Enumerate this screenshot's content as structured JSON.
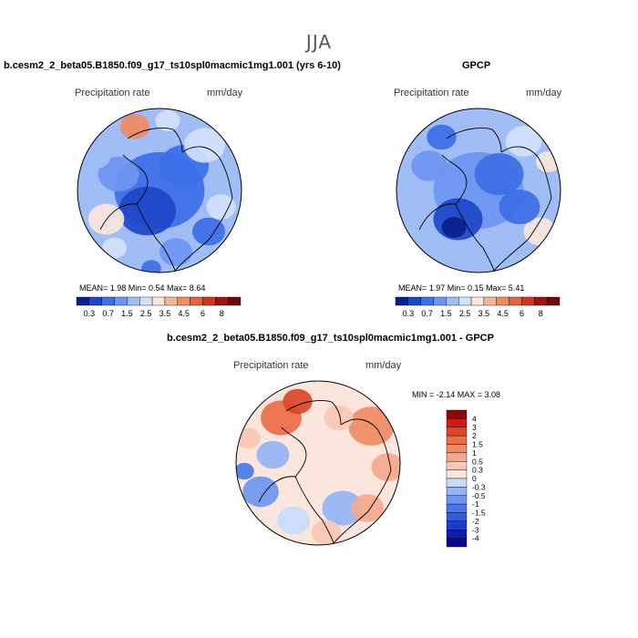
{
  "season": "JJA",
  "panels": [
    {
      "title": "b.cesm2_2_beta05.B1850.f09_g17_ts10spl0macmic1mg1.001 (yrs 6-10)",
      "left_label": "Precipitation rate",
      "right_label": "mm/day",
      "stats_text": "MEAN=    1.98   Min=    0.54   Max=    8.64",
      "colorbar_labels": [
        "0.3",
        "0.7",
        "1.5",
        "2.5",
        "3.5",
        "4.5",
        "6",
        "8"
      ]
    },
    {
      "title": "GPCP",
      "left_label": "Precipitation rate",
      "right_label": "mm/day",
      "stats_text": "MEAN=    1.97   Min=    0.15   Max=    5.41",
      "colorbar_labels": [
        "0.3",
        "0.7",
        "1.5",
        "2.5",
        "3.5",
        "4.5",
        "6",
        "8"
      ]
    },
    {
      "title": "b.cesm2_2_beta05.B1850.f09_g17_ts10spl0macmic1mg1.001 - GPCP",
      "left_label": "Precipitation rate",
      "right_label": "mm/day",
      "stats_text": "MIN =   -2.14  MAX =    3.08",
      "colorbar_labels": [
        "4",
        "3",
        "2",
        "1.5",
        "1",
        "0.5",
        "0.3",
        "0",
        "-0.3",
        "-0.5",
        "-1",
        "-1.5",
        "-2",
        "-3",
        "-4"
      ]
    }
  ],
  "chart_data": [
    {
      "type": "heatmap",
      "title": "b.cesm2_2_beta05.B1850.f09_g17_ts10spl0macmic1mg1.001 (yrs 6-10)",
      "variable": "Precipitation rate",
      "units": "mm/day",
      "mean": 1.98,
      "min": 0.54,
      "max": 8.64,
      "levels": [
        0.3,
        0.7,
        1.5,
        2.5,
        3.5,
        4.5,
        6,
        8
      ],
      "colors": [
        "#0a1e8c",
        "#1e46c8",
        "#3c6ee6",
        "#6e96f0",
        "#a0bef5",
        "#d2e1fa",
        "#fae6dc",
        "#f5b496",
        "#f08c64",
        "#e6643c",
        "#d2321e",
        "#a01410",
        "#6e0a0a"
      ]
    },
    {
      "type": "heatmap",
      "title": "GPCP",
      "variable": "Precipitation rate",
      "units": "mm/day",
      "mean": 1.97,
      "min": 0.15,
      "max": 5.41,
      "levels": [
        0.3,
        0.7,
        1.5,
        2.5,
        3.5,
        4.5,
        6,
        8
      ],
      "colors": [
        "#0a1e8c",
        "#1e46c8",
        "#3c6ee6",
        "#6e96f0",
        "#a0bef5",
        "#d2e1fa",
        "#fae6dc",
        "#f5b496",
        "#f08c64",
        "#e6643c",
        "#d2321e",
        "#a01410",
        "#6e0a0a"
      ]
    },
    {
      "type": "heatmap",
      "title": "b.cesm2_2_beta05.B1850.f09_g17_ts10spl0macmic1mg1.001 - GPCP",
      "variable": "Precipitation rate",
      "units": "mm/day",
      "min": -2.14,
      "max": 3.08,
      "levels": [
        -4,
        -3,
        -2,
        -1.5,
        -1,
        -0.5,
        -0.3,
        0,
        0.3,
        0.5,
        1,
        1.5,
        2,
        3,
        4
      ],
      "colors": [
        "#08088c",
        "#0a1eaa",
        "#1e3cc8",
        "#325ae1",
        "#4678eb",
        "#6e96f0",
        "#96b4f5",
        "#c8dcfa",
        "#fae6dc",
        "#fac8b4",
        "#f5aa8c",
        "#f08c64",
        "#eb6e46",
        "#dc4628",
        "#c81e14",
        "#8c0a0a"
      ]
    }
  ]
}
